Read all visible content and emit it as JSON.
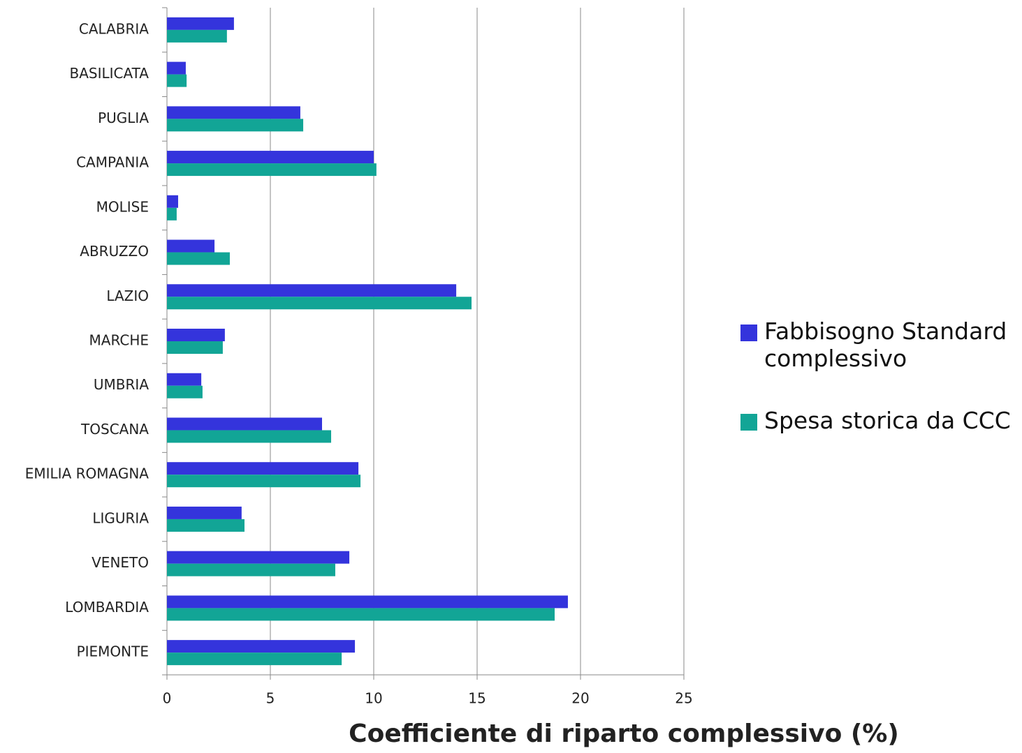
{
  "chart_data": {
    "type": "bar",
    "orientation": "horizontal",
    "x_label": "Coefficiente di riparto complessivo (%)",
    "categories": [
      "CALABRIA",
      "BASILICATA",
      "PUGLIA",
      "CAMPANIA",
      "MOLISE",
      "ABRUZZO",
      "LAZIO",
      "MARCHE",
      "UMBRIA",
      "TOSCANA",
      "EMILIA ROMAGNA",
      "LIGURIA",
      "VENETO",
      "LOMBARDIA",
      "PIEMONTE"
    ],
    "series": [
      {
        "name": "Fabbisogno Standard complessivo",
        "color": "#3434dc",
        "values": [
          3.24,
          0.91,
          6.45,
          10.0,
          0.54,
          2.3,
          13.99,
          2.8,
          1.66,
          7.5,
          9.26,
          3.61,
          8.82,
          19.39,
          9.09
        ]
      },
      {
        "name": "Spesa storica da CCC",
        "color": "#12a596",
        "values": [
          2.9,
          0.95,
          6.59,
          10.13,
          0.47,
          3.04,
          14.73,
          2.7,
          1.72,
          7.94,
          9.36,
          3.75,
          8.14,
          18.75,
          8.45
        ]
      }
    ],
    "xlim": [
      0,
      25
    ],
    "xticks": [
      0,
      5,
      10,
      15,
      20,
      25
    ],
    "grid": true,
    "legend": "right"
  }
}
